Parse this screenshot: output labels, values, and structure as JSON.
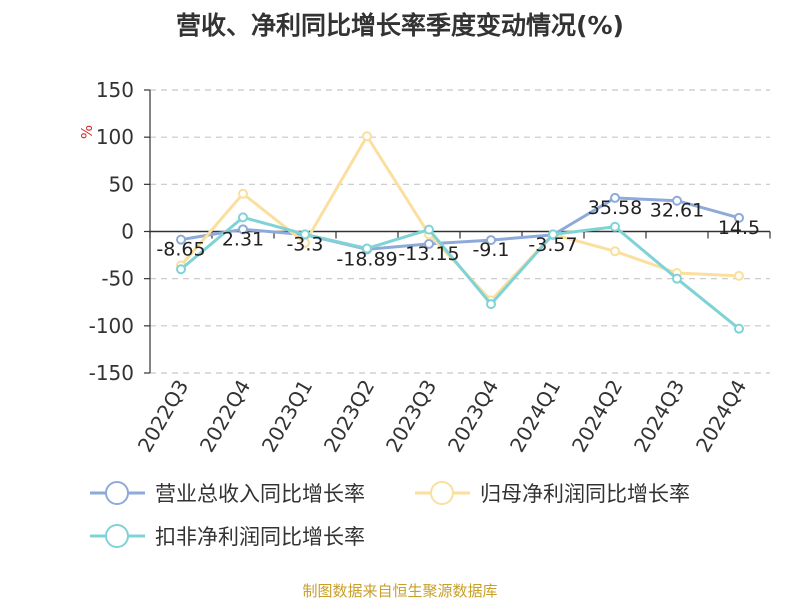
{
  "chart_data": {
    "type": "line",
    "title": "营收、净利同比增长率季度变动情况(%)",
    "ylabel": "%",
    "ylim": [
      -150,
      150
    ],
    "yticks": [
      150,
      100,
      50,
      0,
      -50,
      -100,
      -150
    ],
    "categories": [
      "2022Q3",
      "2022Q4",
      "2023Q1",
      "2023Q2",
      "2023Q3",
      "2023Q4",
      "2024Q1",
      "2024Q2",
      "2024Q3",
      "2024Q4"
    ],
    "series": [
      {
        "name": "营业总收入同比增长率",
        "color": "#8eaadb",
        "values": [
          -8.65,
          2.31,
          -3.3,
          -18.89,
          -13.15,
          -9.1,
          -3.57,
          35.58,
          32.61,
          14.5
        ],
        "labels": [
          "-8.65",
          "2.31",
          "-3.3",
          "-18.89",
          "-13.15",
          "-9.1",
          "-3.57",
          "35.58",
          "32.61",
          "14.5"
        ]
      },
      {
        "name": "归母净利润同比增长率",
        "color": "#fbdf9e",
        "values": [
          -36,
          40,
          -12,
          101,
          -3,
          -73,
          -3,
          -21,
          -44,
          -47
        ]
      },
      {
        "name": "扣非净利润同比增长率",
        "color": "#7fd3d6",
        "values": [
          -40,
          15,
          -3,
          -18,
          2,
          -77,
          -3,
          5,
          -50,
          -103
        ]
      }
    ],
    "grid": true,
    "legend_position": "bottom"
  },
  "source_note": "制图数据来自恒生聚源数据库"
}
